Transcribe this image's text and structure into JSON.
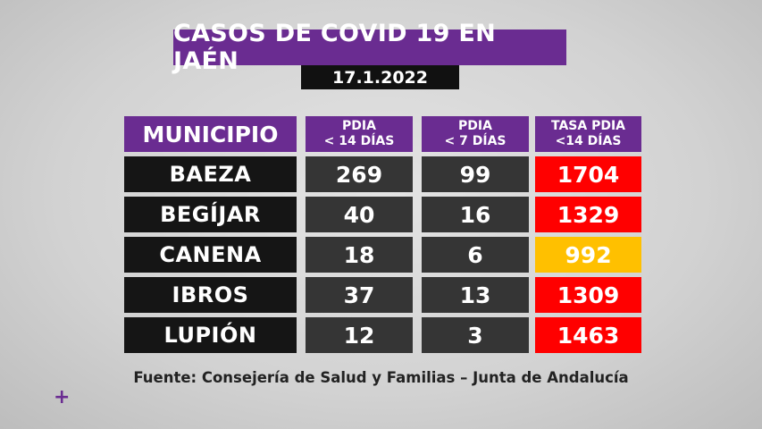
{
  "title": "CASOS DE COVID 19 EN JAÉN",
  "date": "17.1.2022",
  "headers": {
    "municipio": "MUNICIPIO",
    "pdia14_line1": "PDIA",
    "pdia14_line2": "< 14 DÍAS",
    "pdia7_line1": "PDIA",
    "pdia7_line2": "< 7 DÍAS",
    "tasa_line1": "TASA PDIA",
    "tasa_line2": "<14 DÍAS"
  },
  "rows": [
    {
      "municipio": "BAEZA",
      "pdia14": "269",
      "pdia7": "99",
      "tasa": "1704",
      "tasa_color": "#ff0000",
      "tasa_text_color": "#ffffff"
    },
    {
      "municipio": "BEGÍJAR",
      "pdia14": "40",
      "pdia7": "16",
      "tasa": "1329",
      "tasa_color": "#ff0000",
      "tasa_text_color": "#ffffff"
    },
    {
      "municipio": "CANENA",
      "pdia14": "18",
      "pdia7": "6",
      "tasa": "992",
      "tasa_color": "#ffc000",
      "tasa_text_color": "#ffffff"
    },
    {
      "municipio": "IBROS",
      "pdia14": "37",
      "pdia7": "13",
      "tasa": "1309",
      "tasa_color": "#ff0000",
      "tasa_text_color": "#ffffff"
    },
    {
      "municipio": "LUPIÓN",
      "pdia14": "12",
      "pdia7": "3",
      "tasa": "1463",
      "tasa_color": "#ff0000",
      "tasa_text_color": "#ffffff"
    }
  ],
  "source": "Fuente: Consejería de Salud y Familias – Junta de Andalucía",
  "plus_icon": "+"
}
